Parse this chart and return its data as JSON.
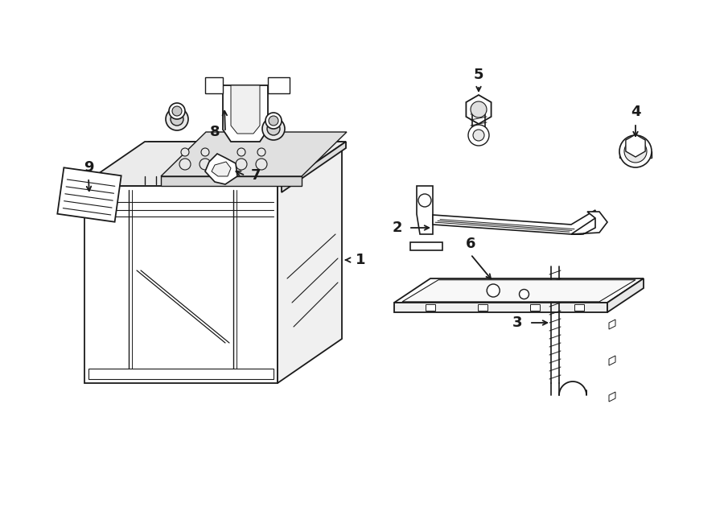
{
  "background_color": "#ffffff",
  "line_color": "#1a1a1a",
  "line_width": 1.3,
  "figsize": [
    9.0,
    6.61
  ],
  "dpi": 100
}
